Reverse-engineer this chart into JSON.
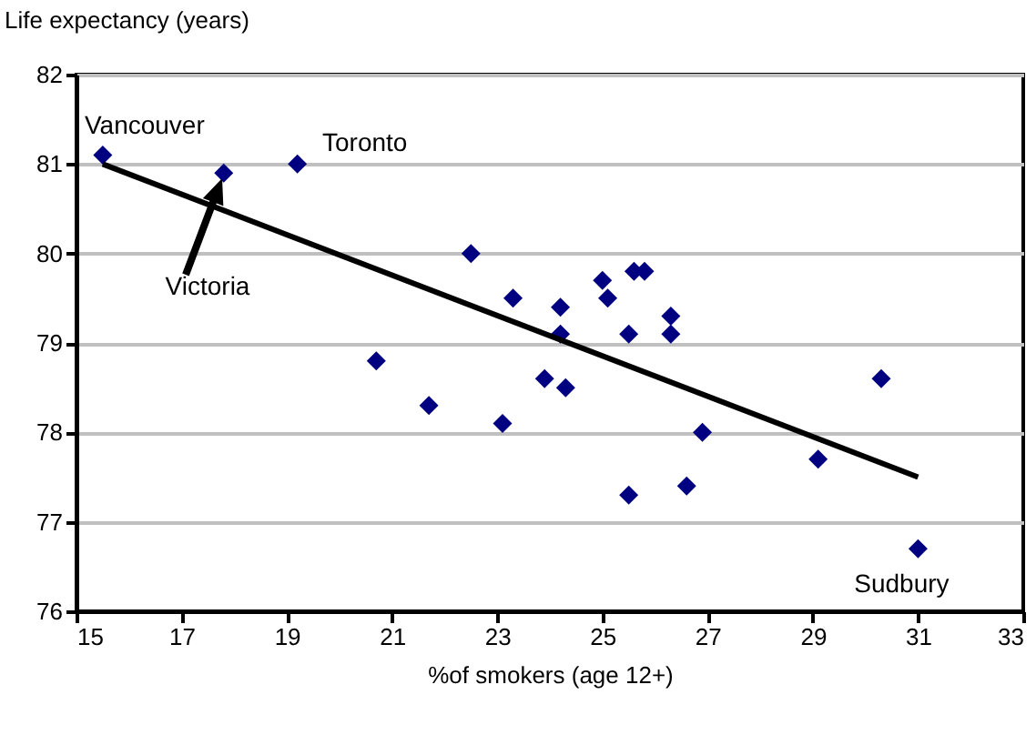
{
  "chart_data": {
    "type": "scatter",
    "xlabel": "%of smokers (age 12+)",
    "ylabel": "Life expectancy (years)",
    "xlim": [
      15,
      33
    ],
    "xticks": [
      15,
      17,
      19,
      21,
      23,
      25,
      27,
      29,
      31,
      33
    ],
    "ylim": [
      76,
      82
    ],
    "yticks": [
      76,
      77,
      78,
      79,
      80,
      81,
      82
    ],
    "grid": "y",
    "series": [
      {
        "color": "#000080",
        "marker": "diamond",
        "x": [
          15.5,
          17.8,
          19.2,
          22.5,
          23.3,
          20.7,
          21.7,
          23.1,
          24.2,
          24.2,
          23.9,
          24.3,
          25.0,
          25.1,
          25.6,
          25.8,
          25.5,
          26.3,
          26.3,
          26.9,
          26.6,
          25.5,
          29.1,
          30.3,
          31.0
        ],
        "values": [
          81.1,
          80.9,
          81.0,
          80.0,
          79.5,
          78.8,
          78.3,
          78.1,
          79.4,
          79.1,
          78.6,
          78.5,
          79.7,
          79.5,
          79.8,
          79.8,
          79.1,
          79.3,
          79.1,
          78.0,
          77.4,
          77.3,
          77.7,
          78.6,
          76.7
        ]
      },
      {
        "type": "line",
        "color": "#000000",
        "x": [
          15.5,
          31.0
        ],
        "values": [
          81.0,
          77.5
        ]
      }
    ],
    "annotations": [
      {
        "text": "Vancouver",
        "x": 15.5,
        "y": 81.1
      },
      {
        "text": "Toronto",
        "x": 19.2,
        "y": 81.0
      },
      "Victoria",
      {
        "text": "Sudbury",
        "x": 31.0,
        "y": 76.7
      }
    ]
  }
}
